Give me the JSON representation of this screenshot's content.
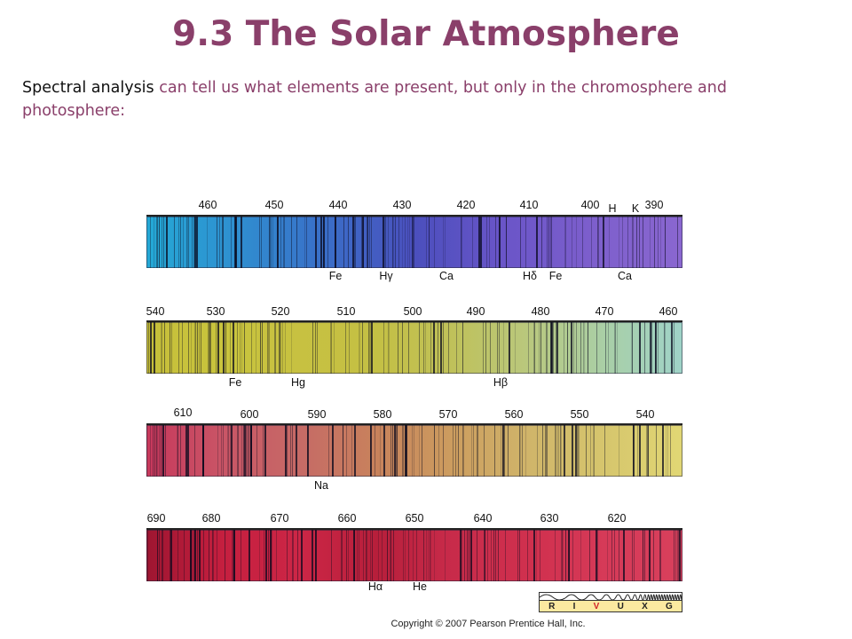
{
  "slide": {
    "title": "9.3 The Solar Atmosphere",
    "body_lead": "Spectral analysis",
    "body_rest": " can tell us what elements are present, but only in the chromosphere and photosphere:",
    "copyright": "Copyright © 2007 Pearson Prentice Hall, Inc."
  },
  "colors": {
    "title": "#8a3f6a",
    "body": "#8a3f6a",
    "lead": "#111111"
  },
  "spectrum": {
    "strips": [
      {
        "ticks": [
          "460",
          "450",
          "440",
          "430",
          "420",
          "410",
          "400",
          "390"
        ],
        "ticks_top": [
          "H",
          "K"
        ],
        "elements": [
          "Fe",
          "Hγ",
          "Ca",
          "Hδ",
          "Fe",
          "Ca"
        ],
        "gradient": [
          "#24a9d6",
          "#2f8fd0",
          "#3a6ec8",
          "#4b4fbd",
          "#6a55c8",
          "#7d5fcc",
          "#8a67d0"
        ]
      },
      {
        "ticks": [
          "540",
          "530",
          "520",
          "510",
          "500",
          "490",
          "480",
          "470",
          "460"
        ],
        "elements": [
          "Fe",
          "Hg",
          "Hβ"
        ],
        "gradient": [
          "#c6bf3a",
          "#c9c43d",
          "#c7c141",
          "#c4c044",
          "#bfc15a",
          "#b9c87e",
          "#a9cfa7",
          "#9fd3c8"
        ]
      },
      {
        "ticks": [
          "610",
          "600",
          "590",
          "580",
          "570",
          "560",
          "550",
          "540"
        ],
        "elements": [
          "Na"
        ],
        "gradient": [
          "#c8385c",
          "#c95566",
          "#c66a66",
          "#c8825c",
          "#cc9d5f",
          "#d0b56a",
          "#d6c66d",
          "#e1d774"
        ]
      },
      {
        "ticks": [
          "690",
          "680",
          "670",
          "660",
          "650",
          "640",
          "630",
          "620"
        ],
        "elements": [
          "Hα",
          "He"
        ],
        "gradient": [
          "#9e1631",
          "#c51f3f",
          "#cc2646",
          "#b71f3b",
          "#c82b4a",
          "#d0304e",
          "#d63a58",
          "#d8405c"
        ]
      }
    ],
    "band": {
      "labels": [
        "R",
        "I",
        "V",
        "U",
        "X",
        "G"
      ],
      "highlight": "V"
    }
  }
}
